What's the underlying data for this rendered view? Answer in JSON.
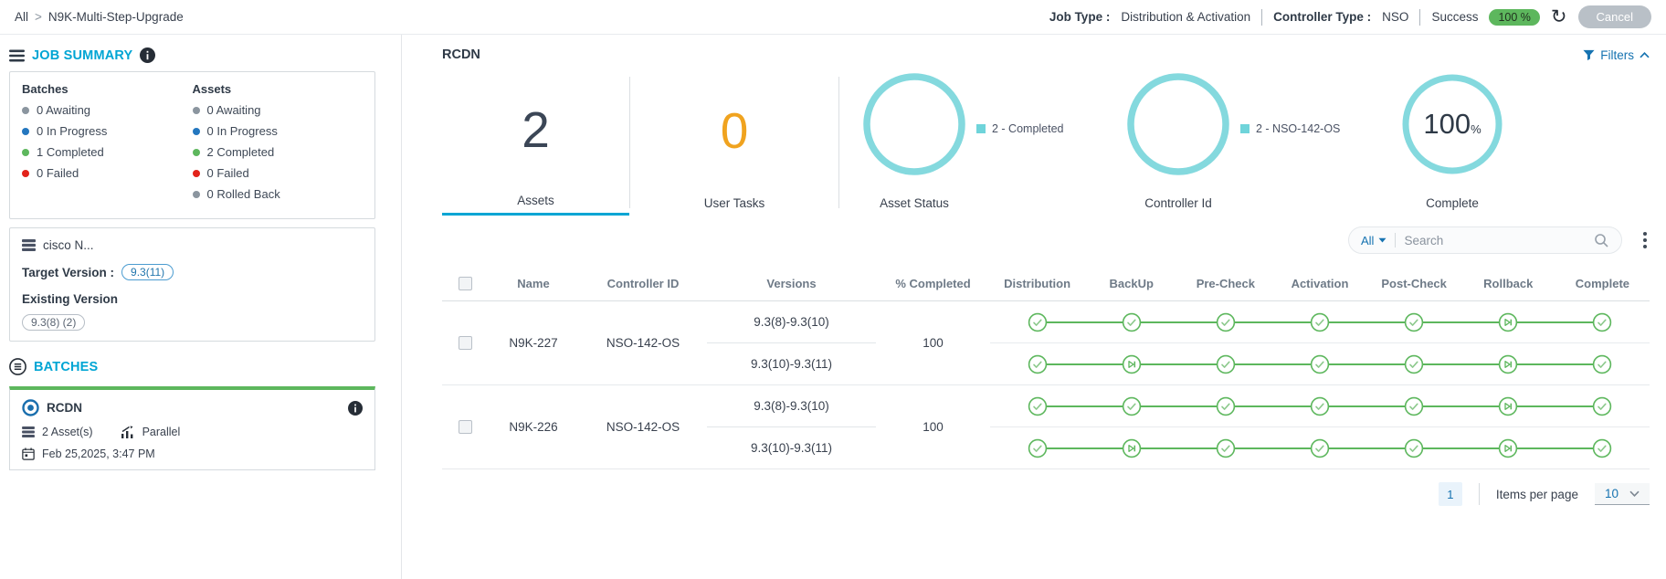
{
  "colors": {
    "accent_cyan": "#00a5d4",
    "link_blue": "#1673b1",
    "success_green": "#5db75d",
    "error_red": "#e2231a",
    "warning_orange": "#f0a31f",
    "teal_ring": "#84d9de",
    "awaiting_gray": "#8b959f",
    "in_progress_blue": "#2477bf"
  },
  "topbar": {
    "breadcrumb_root": "All",
    "breadcrumb_sep": ">",
    "breadcrumb_current": "N9K-Multi-Step-Upgrade",
    "job_type_label": "Job Type :",
    "job_type_value": "Distribution & Activation",
    "controller_type_label": "Controller Type :",
    "controller_type_value": "NSO",
    "status_text": "Success",
    "status_badge": "100 %",
    "cancel_label": "Cancel"
  },
  "sidebar": {
    "job_summary_title": "JOB SUMMARY",
    "batches_summary": {
      "title": "Batches",
      "items": [
        {
          "text": "0 Awaiting",
          "color": "#8b959f"
        },
        {
          "text": "0 In Progress",
          "color": "#2477bf"
        },
        {
          "text": "1 Completed",
          "color": "#5db75d"
        },
        {
          "text": "0 Failed",
          "color": "#e2231a"
        }
      ]
    },
    "assets_summary": {
      "title": "Assets",
      "items": [
        {
          "text": "0 Awaiting",
          "color": "#8b959f"
        },
        {
          "text": "0 In Progress",
          "color": "#2477bf"
        },
        {
          "text": "2 Completed",
          "color": "#5db75d"
        },
        {
          "text": "0 Failed",
          "color": "#e2231a"
        },
        {
          "text": "0 Rolled Back",
          "color": "#8b959f"
        }
      ]
    },
    "device": {
      "name": "cisco N...",
      "target_version_label": "Target Version :",
      "target_version": "9.3(11)",
      "existing_version_label": "Existing Version",
      "existing_version": "9.3(8) (2)"
    },
    "batches_title": "BATCHES",
    "batch_card": {
      "name": "RCDN",
      "asset_count": "2 Asset(s)",
      "mode": "Parallel",
      "timestamp": "Feb 25,2025, 3:47 PM"
    }
  },
  "main": {
    "batch_title": "RCDN",
    "filters_label": "Filters",
    "stats": {
      "assets_value": "2",
      "assets_label": "Assets",
      "user_tasks_value": "0",
      "user_tasks_label": "User Tasks",
      "asset_status_label": "Asset Status",
      "asset_status_legend": "2 - Completed",
      "controller_id_label": "Controller Id",
      "controller_id_legend": "2 - NSO-142-OS",
      "complete_value": "100",
      "complete_unit": "%",
      "complete_label": "Complete"
    },
    "controls": {
      "scope_value": "All",
      "search_placeholder": "Search"
    },
    "table": {
      "columns": [
        "Name",
        "Controller ID",
        "Versions",
        "% Completed",
        "Distribution",
        "BackUp",
        "Pre-Check",
        "Activation",
        "Post-Check",
        "Rollback",
        "Complete"
      ],
      "rows": [
        {
          "name": "N9K-227",
          "controller_id": "NSO-142-OS",
          "percent_completed": "100",
          "hops": [
            {
              "versions": "9.3(8)-9.3(10)",
              "stages": [
                "check",
                "check",
                "check",
                "check",
                "check",
                "skip",
                "check"
              ]
            },
            {
              "versions": "9.3(10)-9.3(11)",
              "stages": [
                "check",
                "skip",
                "check",
                "check",
                "check",
                "skip",
                "check"
              ]
            }
          ]
        },
        {
          "name": "N9K-226",
          "controller_id": "NSO-142-OS",
          "percent_completed": "100",
          "hops": [
            {
              "versions": "9.3(8)-9.3(10)",
              "stages": [
                "check",
                "check",
                "check",
                "check",
                "check",
                "skip",
                "check"
              ]
            },
            {
              "versions": "9.3(10)-9.3(11)",
              "stages": [
                "check",
                "skip",
                "check",
                "check",
                "check",
                "skip",
                "check"
              ]
            }
          ]
        }
      ]
    },
    "pagination": {
      "page": "1",
      "items_per_page_label": "Items per page",
      "page_size": "10"
    }
  }
}
